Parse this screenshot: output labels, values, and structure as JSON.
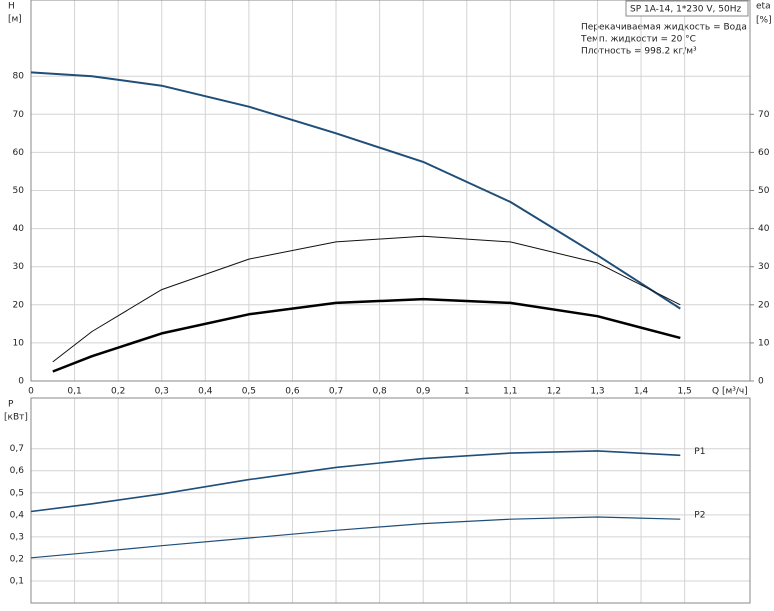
{
  "chart_data": [
    {
      "type": "line",
      "title": "SP 1A-14, 1*230 V, 50Hz",
      "annotations": [
        "Перекачиваемая жидкость = Вода",
        "Темп. жидкости = 20 °C",
        "Плотность = 998.2 кг/м³"
      ],
      "y_label": "H",
      "y_unit": "[м]",
      "y2_label": "eta",
      "y2_unit": "[%]",
      "x_label": "Q [м³/ч]",
      "xlim": [
        0,
        1.65
      ],
      "xticks": [
        0,
        {
          "value": 0.1,
          "label": "0,1"
        },
        {
          "value": 0.2,
          "label": "0,2"
        },
        {
          "value": 0.3,
          "label": "0,3"
        },
        {
          "value": 0.4,
          "label": "0,4"
        },
        {
          "value": 0.5,
          "label": "0,5"
        },
        {
          "value": 0.6,
          "label": "0,6"
        },
        {
          "value": 0.7,
          "label": "0,7"
        },
        {
          "value": 0.8,
          "label": "0,8"
        },
        {
          "value": 0.9,
          "label": "0,9"
        },
        1,
        {
          "value": 1.1,
          "label": "1,1"
        },
        {
          "value": 1.2,
          "label": "1,2"
        },
        {
          "value": 1.3,
          "label": "1,3"
        },
        {
          "value": 1.4,
          "label": "1,4"
        },
        {
          "value": 1.5,
          "label": "1,5"
        }
      ],
      "ylim": [
        0,
        100
      ],
      "yticks": [
        0,
        10,
        20,
        30,
        40,
        50,
        60,
        70,
        80
      ],
      "y2lim": [
        0,
        100
      ],
      "y2ticks": [
        0,
        10,
        20,
        30,
        40,
        50,
        60,
        70
      ],
      "grid": true,
      "series": [
        {
          "color": "#1f4e79",
          "width": 2,
          "x": [
            0,
            0.14,
            0.3,
            0.5,
            0.7,
            0.9,
            1.1,
            1.3,
            1.49
          ],
          "values": [
            81,
            80,
            77.5,
            72,
            65,
            57.5,
            47,
            33,
            19
          ]
        },
        {
          "color": "#111111",
          "width": 1,
          "axis": "y2",
          "x": [
            0.05,
            0.14,
            0.3,
            0.5,
            0.7,
            0.9,
            1.1,
            1.3,
            1.49
          ],
          "values": [
            5,
            13,
            24,
            32,
            36.5,
            38,
            36.5,
            31,
            20
          ]
        },
        {
          "color": "#000000",
          "width": 2.5,
          "axis": "y2",
          "x": [
            0.05,
            0.14,
            0.3,
            0.5,
            0.7,
            0.9,
            1.1,
            1.3,
            1.49
          ],
          "values": [
            2.5,
            6.5,
            12.5,
            17.5,
            20.5,
            21.5,
            20.5,
            17,
            11.3
          ]
        }
      ]
    },
    {
      "type": "line",
      "y_label": "P",
      "y_unit": "[кВт]",
      "ylim": [
        0,
        0.93
      ],
      "yticks": [
        {
          "value": 0.1,
          "label": "0,1"
        },
        {
          "value": 0.2,
          "label": "0,2"
        },
        {
          "value": 0.3,
          "label": "0,3"
        },
        {
          "value": 0.4,
          "label": "0,4"
        },
        {
          "value": 0.5,
          "label": "0,5"
        },
        {
          "value": 0.6,
          "label": "0,6"
        },
        {
          "value": 0.7,
          "label": "0,7"
        }
      ],
      "grid": true,
      "series": [
        {
          "name": "P1",
          "color": "#1f4e79",
          "width": 1.6,
          "x": [
            0,
            0.14,
            0.3,
            0.5,
            0.7,
            0.9,
            1.1,
            1.3,
            1.49
          ],
          "values": [
            0.415,
            0.45,
            0.495,
            0.56,
            0.615,
            0.655,
            0.68,
            0.69,
            0.67
          ]
        },
        {
          "name": "P2",
          "color": "#1f4e79",
          "width": 1.2,
          "x": [
            0,
            0.14,
            0.3,
            0.5,
            0.7,
            0.9,
            1.1,
            1.3,
            1.49
          ],
          "values": [
            0.205,
            0.23,
            0.26,
            0.295,
            0.33,
            0.36,
            0.38,
            0.39,
            0.38
          ]
        }
      ]
    }
  ]
}
